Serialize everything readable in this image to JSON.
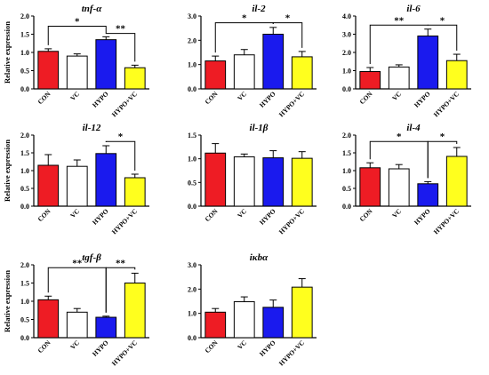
{
  "colors": {
    "CON": "#ee1c24",
    "VC": "#ffffff",
    "HYPO": "#1a1aee",
    "HYPO+VC": "#ffff1e",
    "stroke": "#000000"
  },
  "chart_data": [
    {
      "type": "bar",
      "title": "tnf-α",
      "ylabel": "Relative expression",
      "ylim": [
        0,
        2.0
      ],
      "ytick_labels": [
        "0.0",
        "0.5",
        "1.0",
        "1.5",
        "2.0"
      ],
      "categories": [
        "CON",
        "VC",
        "HYPO",
        "HYPO+VC"
      ],
      "values": [
        1.03,
        0.9,
        1.35,
        0.58
      ],
      "errors": [
        0.07,
        0.06,
        0.08,
        0.07
      ],
      "significance": [
        {
          "from": 0,
          "to": 2,
          "label": "*",
          "y": 1.72
        },
        {
          "from": 2,
          "to": 3,
          "label": "**",
          "y": 1.52
        }
      ]
    },
    {
      "type": "bar",
      "title": "il-2",
      "ylabel": "",
      "ylim": [
        0,
        3.0
      ],
      "ytick_labels": [
        "0.0",
        "1.0",
        "2.0",
        "3.0"
      ],
      "categories": [
        "CON",
        "VC",
        "HYPO",
        "HYPO+VC"
      ],
      "values": [
        1.15,
        1.4,
        2.25,
        1.32
      ],
      "errors": [
        0.2,
        0.22,
        0.28,
        0.22
      ],
      "significance": [
        {
          "from": 0,
          "to": 2,
          "label": "*",
          "y": 2.72
        },
        {
          "from": 2,
          "to": 3,
          "label": "*",
          "y": 2.72
        }
      ]
    },
    {
      "type": "bar",
      "title": "il-6",
      "ylabel": "",
      "ylim": [
        0,
        4.0
      ],
      "ytick_labels": [
        "0.0",
        "1.0",
        "2.0",
        "3.0",
        "4.0"
      ],
      "categories": [
        "CON",
        "VC",
        "HYPO",
        "HYPO+VC"
      ],
      "values": [
        0.95,
        1.2,
        2.9,
        1.55
      ],
      "errors": [
        0.22,
        0.12,
        0.38,
        0.35
      ],
      "significance": [
        {
          "from": 0,
          "to": 2,
          "label": "**",
          "y": 3.5
        },
        {
          "from": 2,
          "to": 3,
          "label": "*",
          "y": 3.5
        }
      ]
    },
    {
      "type": "bar",
      "title": "il-12",
      "ylabel": "Relative expression",
      "ylim": [
        0,
        2.0
      ],
      "ytick_labels": [
        "0.0",
        "0.5",
        "1.0",
        "1.5",
        "2.0"
      ],
      "categories": [
        "CON",
        "VC",
        "HYPO",
        "HYPO+VC"
      ],
      "values": [
        1.15,
        1.12,
        1.48,
        0.8
      ],
      "errors": [
        0.3,
        0.18,
        0.22,
        0.1
      ],
      "significance": [
        {
          "from": 2,
          "to": 3,
          "label": "*",
          "y": 1.82
        }
      ]
    },
    {
      "type": "bar",
      "title": "il-1β",
      "ylabel": "",
      "ylim": [
        0,
        1.5
      ],
      "ytick_labels": [
        "0.0",
        "0.5",
        "1.0",
        "1.5"
      ],
      "categories": [
        "CON",
        "VC",
        "HYPO",
        "HYPO+VC"
      ],
      "values": [
        1.12,
        1.04,
        1.02,
        1.01
      ],
      "errors": [
        0.2,
        0.06,
        0.15,
        0.14
      ],
      "significance": []
    },
    {
      "type": "bar",
      "title": "il-4",
      "ylabel": "",
      "ylim": [
        0,
        2.0
      ],
      "ytick_labels": [
        "0.0",
        "0.5",
        "1.0",
        "1.5",
        "2.0"
      ],
      "categories": [
        "CON",
        "VC",
        "HYPO",
        "HYPO+VC"
      ],
      "values": [
        1.08,
        1.05,
        0.63,
        1.4
      ],
      "errors": [
        0.14,
        0.12,
        0.06,
        0.25
      ],
      "significance": [
        {
          "from": 0,
          "to": 2,
          "label": "*",
          "y": 1.82
        },
        {
          "from": 2,
          "to": 3,
          "label": "*",
          "y": 1.82
        }
      ]
    },
    {
      "type": "bar",
      "title": "tgf-β",
      "ylabel": "Relative expression",
      "ylim": [
        0,
        2.0
      ],
      "ytick_labels": [
        "0.0",
        "0.5",
        "1.0",
        "1.5",
        "2.0"
      ],
      "categories": [
        "CON",
        "VC",
        "HYPO",
        "HYPO+VC"
      ],
      "values": [
        1.04,
        0.7,
        0.56,
        1.5
      ],
      "errors": [
        0.1,
        0.1,
        0.03,
        0.27
      ],
      "significance": [
        {
          "from": 0,
          "to": 2,
          "label": "**",
          "y": 1.92
        },
        {
          "from": 2,
          "to": 3,
          "label": "**",
          "y": 1.92
        }
      ]
    },
    {
      "type": "bar",
      "title": "iκbα",
      "ylabel": "",
      "ylim": [
        0,
        3.0
      ],
      "ytick_labels": [
        "0.0",
        "1.0",
        "2.0",
        "3.0"
      ],
      "categories": [
        "CON",
        "VC",
        "HYPO",
        "HYPO+VC"
      ],
      "values": [
        1.05,
        1.48,
        1.25,
        2.08
      ],
      "errors": [
        0.15,
        0.2,
        0.3,
        0.35
      ],
      "significance": []
    }
  ]
}
